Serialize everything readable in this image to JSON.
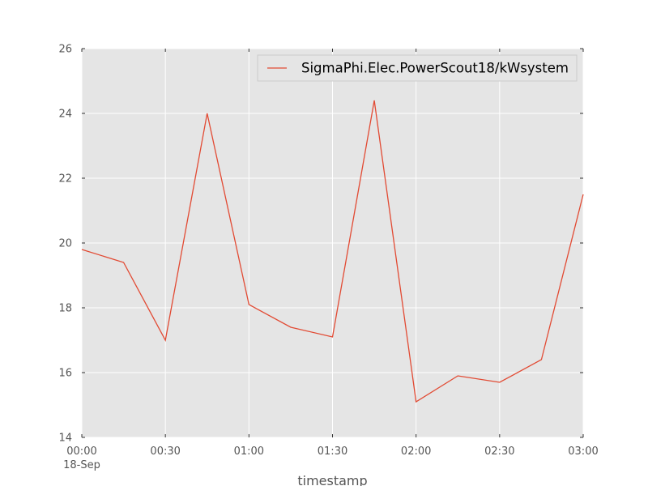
{
  "chart_data": {
    "type": "line",
    "xlabel": "timestamp",
    "ylabel": "",
    "x_date_label": "18-Sep",
    "x": [
      "00:00",
      "00:15",
      "00:30",
      "00:45",
      "01:00",
      "01:15",
      "01:30",
      "01:45",
      "02:00",
      "02:15",
      "02:30",
      "02:45",
      "03:00"
    ],
    "x_ticks": [
      "00:00",
      "00:30",
      "01:00",
      "01:30",
      "02:00",
      "02:30",
      "03:00"
    ],
    "y_ticks": [
      14,
      16,
      18,
      20,
      22,
      24,
      26
    ],
    "ylim": [
      14,
      26
    ],
    "grid": true,
    "legend_position": "top-right",
    "series": [
      {
        "name": "SigmaPhi.Elec.PowerScout18/kWsystem",
        "color": "#e24a33",
        "values": [
          19.8,
          19.4,
          17.0,
          24.0,
          18.1,
          17.4,
          17.1,
          24.4,
          15.1,
          15.9,
          15.7,
          16.4,
          21.5
        ]
      }
    ]
  },
  "colors": {
    "plot_background": "#e5e5e5",
    "grid": "#ffffff",
    "tick_label": "#555555"
  }
}
